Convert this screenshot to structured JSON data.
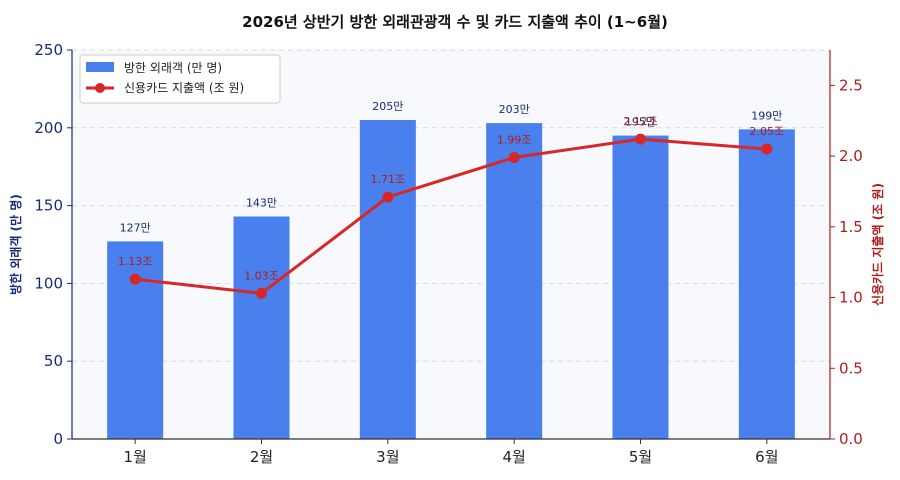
{
  "chart_data": {
    "type": "bar",
    "title": "2026년 상반기 방한 외래관광객 수 및 카드 지출액 추이 (1~6월)",
    "categories": [
      "1월",
      "2월",
      "3월",
      "4월",
      "5월",
      "6월"
    ],
    "ylabel_left": "방한 외래객 (만 명)",
    "ylabel_right": "신용카드 지출액 (조 원)",
    "ylim_left": [
      0,
      250
    ],
    "yticks_left": [
      "0",
      "50",
      "100",
      "150",
      "200",
      "250"
    ],
    "ylim_right": [
      0,
      2.75
    ],
    "yticks_right": [
      "0.0",
      "0.5",
      "1.0",
      "1.5",
      "2.0",
      "2.5"
    ],
    "grid": true,
    "legend_position": "top-left",
    "series": [
      {
        "name": "방한 외래객 (만 명)",
        "type": "bar",
        "axis": "left",
        "color": "#4a7fee",
        "values": [
          127,
          143,
          205,
          203,
          195,
          199
        ],
        "labels": [
          "127만",
          "143만",
          "205만",
          "203만",
          "195만",
          "199만"
        ]
      },
      {
        "name": "신용카드 지출액 (조 원)",
        "type": "line",
        "axis": "right",
        "color": "#d62828",
        "values": [
          1.13,
          1.03,
          1.71,
          1.99,
          2.12,
          2.05
        ],
        "labels": [
          "1.13조",
          "1.03조",
          "1.71조",
          "1.99조",
          "2.12조",
          "2.05조"
        ]
      }
    ]
  },
  "colors": {
    "left_axis": "#1a2a7a",
    "right_axis": "#b01c1c",
    "plot_bg": "#f7f9fc",
    "grid": "#d7dbe3"
  }
}
